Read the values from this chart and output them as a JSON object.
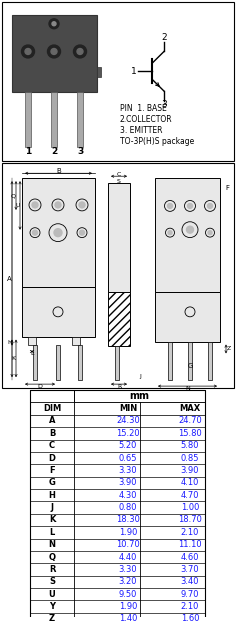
{
  "pin_labels": [
    "PIN  1. BASE",
    "2.COLLECTOR",
    "3. EMITTER",
    "TO-3P(H)S package"
  ],
  "pin_numbers": [
    "1",
    "2",
    "3"
  ],
  "table_headers": [
    "DIM",
    "MIN",
    "MAX"
  ],
  "table_unit": "mm",
  "table_data": [
    [
      "A",
      "24.30",
      "24.70"
    ],
    [
      "B",
      "15.20",
      "15.80"
    ],
    [
      "C",
      "5.20",
      "5.80"
    ],
    [
      "D",
      "0.65",
      "0.85"
    ],
    [
      "F",
      "3.30",
      "3.90"
    ],
    [
      "G",
      "3.90",
      "4.10"
    ],
    [
      "H",
      "4.30",
      "4.70"
    ],
    [
      "J",
      "0.80",
      "1.00"
    ],
    [
      "K",
      "18.30",
      "18.70"
    ],
    [
      "L",
      "1.90",
      "2.10"
    ],
    [
      "N",
      "10.70",
      "11.10"
    ],
    [
      "Q",
      "4.40",
      "4.60"
    ],
    [
      "R",
      "3.30",
      "3.70"
    ],
    [
      "S",
      "3.20",
      "3.40"
    ],
    [
      "U",
      "9.50",
      "9.70"
    ],
    [
      "Y",
      "1.90",
      "2.10"
    ],
    [
      "Z",
      "1.40",
      "1.60"
    ]
  ],
  "bg_color": "#ffffff",
  "border_color": "#000000",
  "text_color": "#000000",
  "dim_label_color": "#1a1aff",
  "dim_header_color": "#000000",
  "transistor_body_color": "#4a4a4a",
  "transistor_leg_color": "#aaaaaa",
  "drawing_fill": "#e8e8e8"
}
